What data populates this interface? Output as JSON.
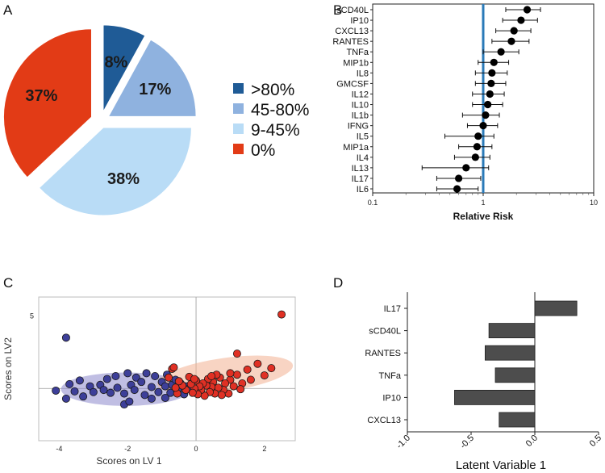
{
  "panels": {
    "a": "A",
    "b": "B",
    "c": "C",
    "d": "D"
  },
  "chart_data": [
    {
      "type": "pie",
      "panel": "A",
      "slices": [
        {
          "label": ">80%",
          "value": 8,
          "display": "8%",
          "color": "#1f5b96"
        },
        {
          "label": "45-80%",
          "value": 17,
          "display": "17%",
          "color": "#8fb2df"
        },
        {
          "label": "9-45%",
          "value": 38,
          "display": "38%",
          "color": "#b9dcf6"
        },
        {
          "label": "0%",
          "value": 37,
          "display": "37%",
          "color": "#e23b16"
        }
      ],
      "exploded": true,
      "legend_position": "right"
    },
    {
      "type": "scatter",
      "subtype": "forest-plot",
      "panel": "B",
      "xscale": "log",
      "xlim": [
        0.1,
        10
      ],
      "xticks": [
        "0.1",
        "1",
        "10"
      ],
      "xlabel": "Relative Risk",
      "reference_line": 1,
      "reference_color": "#2a7ab8",
      "markers": [
        {
          "label": "sCD40L",
          "estimate": 2.5,
          "low": 1.6,
          "high": 3.3
        },
        {
          "label": "IP10",
          "estimate": 2.2,
          "low": 1.5,
          "high": 3.1
        },
        {
          "label": "CXCL13",
          "estimate": 1.9,
          "low": 1.3,
          "high": 2.7
        },
        {
          "label": "RANTES",
          "estimate": 1.8,
          "low": 1.2,
          "high": 2.6
        },
        {
          "label": "TNFa",
          "estimate": 1.45,
          "low": 1.0,
          "high": 2.1
        },
        {
          "label": "MIP1b",
          "estimate": 1.25,
          "low": 0.9,
          "high": 1.7
        },
        {
          "label": "IL8",
          "estimate": 1.2,
          "low": 0.85,
          "high": 1.65
        },
        {
          "label": "GMCSF",
          "estimate": 1.18,
          "low": 0.85,
          "high": 1.6
        },
        {
          "label": "IL12",
          "estimate": 1.15,
          "low": 0.8,
          "high": 1.55
        },
        {
          "label": "IL10",
          "estimate": 1.1,
          "low": 0.8,
          "high": 1.5
        },
        {
          "label": "IL1b",
          "estimate": 1.05,
          "low": 0.65,
          "high": 1.4
        },
        {
          "label": "IFNG",
          "estimate": 1.0,
          "low": 0.72,
          "high": 1.35
        },
        {
          "label": "IL5",
          "estimate": 0.9,
          "low": 0.45,
          "high": 1.25
        },
        {
          "label": "MIP1a",
          "estimate": 0.88,
          "low": 0.6,
          "high": 1.2
        },
        {
          "label": "IL4",
          "estimate": 0.85,
          "low": 0.55,
          "high": 1.15
        },
        {
          "label": "IL13",
          "estimate": 0.7,
          "low": 0.28,
          "high": 1.12
        },
        {
          "label": "IL17",
          "estimate": 0.6,
          "low": 0.38,
          "high": 0.95
        },
        {
          "label": "IL6",
          "estimate": 0.58,
          "low": 0.38,
          "high": 0.9
        }
      ]
    },
    {
      "type": "scatter",
      "panel": "C",
      "xlabel": "Scores on LV 1",
      "ylabel": "Scores on LV2",
      "xlim": [
        -4.6,
        2.9
      ],
      "ylim": [
        -3.6,
        6.3
      ],
      "xticks": [
        "-4",
        "-2",
        "0",
        "2"
      ],
      "yticks": [
        "5"
      ],
      "series": [
        {
          "name": "blue group",
          "color": "#3d3f99",
          "ellipse_color": "#8c88cc",
          "ellipse": {
            "cx": -2.05,
            "cy": -0.05,
            "rx": 1.9,
            "ry": 1.15
          },
          "points": [
            [
              -3.8,
              3.5
            ],
            [
              -4.1,
              -0.15
            ],
            [
              -3.8,
              -0.7
            ],
            [
              -3.7,
              0.3
            ],
            [
              -3.4,
              0.55
            ],
            [
              -3.55,
              -0.2
            ],
            [
              -3.3,
              -0.55
            ],
            [
              -3.1,
              0.15
            ],
            [
              -3.0,
              -0.25
            ],
            [
              -2.8,
              0.25
            ],
            [
              -2.7,
              -0.1
            ],
            [
              -2.6,
              0.65
            ],
            [
              -2.5,
              -0.3
            ],
            [
              -2.35,
              0.85
            ],
            [
              -2.3,
              0.05
            ],
            [
              -2.1,
              -0.35
            ],
            [
              -2.0,
              1.05
            ],
            [
              -1.9,
              0.25
            ],
            [
              -1.8,
              -0.1
            ],
            [
              -1.75,
              0.75
            ],
            [
              -1.6,
              0.45
            ],
            [
              -1.5,
              -0.45
            ],
            [
              -1.45,
              1.05
            ],
            [
              -1.3,
              0.1
            ],
            [
              -1.2,
              0.85
            ],
            [
              -1.1,
              -0.25
            ],
            [
              -1.0,
              0.45
            ],
            [
              -0.9,
              0.15
            ],
            [
              -0.85,
              0.95
            ],
            [
              -0.75,
              -0.3
            ],
            [
              -0.7,
              0.25
            ],
            [
              -0.6,
              0.6
            ],
            [
              -0.55,
              -0.15
            ],
            [
              -0.5,
              0.05
            ],
            [
              -0.45,
              0.35
            ],
            [
              -0.35,
              -0.4
            ],
            [
              -0.3,
              0.15
            ],
            [
              -2.1,
              -1.1
            ],
            [
              -1.95,
              -0.9
            ],
            [
              -0.9,
              -0.65
            ],
            [
              -1.3,
              -0.7
            ],
            [
              -0.2,
              0.0
            ]
          ]
        },
        {
          "name": "red group",
          "color": "#e03024",
          "ellipse_color": "#f2b092",
          "ellipse": {
            "cx": 0.85,
            "cy": 0.95,
            "rx": 2.0,
            "ry": 1.15
          },
          "points": [
            [
              2.5,
              5.1
            ],
            [
              1.2,
              2.4
            ],
            [
              2.2,
              1.4
            ],
            [
              2.0,
              0.9
            ],
            [
              1.8,
              1.7
            ],
            [
              1.6,
              0.6
            ],
            [
              1.5,
              1.3
            ],
            [
              1.35,
              0.35
            ],
            [
              1.2,
              0.95
            ],
            [
              1.1,
              0.15
            ],
            [
              1.0,
              0.6
            ],
            [
              0.95,
              -0.35
            ],
            [
              0.85,
              0.35
            ],
            [
              0.8,
              -0.1
            ],
            [
              0.7,
              0.75
            ],
            [
              0.65,
              0.05
            ],
            [
              0.55,
              -0.35
            ],
            [
              0.5,
              0.45
            ],
            [
              0.45,
              0.1
            ],
            [
              0.4,
              -0.25
            ],
            [
              0.35,
              0.65
            ],
            [
              0.3,
              0.2
            ],
            [
              0.25,
              -0.5
            ],
            [
              0.2,
              0.35
            ],
            [
              0.15,
              -0.1
            ],
            [
              0.1,
              0.15
            ],
            [
              0.05,
              -0.4
            ],
            [
              0.0,
              0.55
            ],
            [
              -0.05,
              0.0
            ],
            [
              -0.1,
              -0.3
            ],
            [
              -0.15,
              0.3
            ],
            [
              -0.2,
              0.8
            ],
            [
              -0.3,
              -0.1
            ],
            [
              -0.4,
              0.2
            ],
            [
              -0.5,
              0.5
            ],
            [
              -0.55,
              -0.35
            ],
            [
              -0.6,
              0.05
            ],
            [
              -0.7,
              1.35
            ],
            [
              -0.8,
              0.75
            ],
            [
              -0.65,
              1.45
            ],
            [
              0.6,
              0.95
            ],
            [
              1.0,
              1.05
            ],
            [
              1.3,
              -0.05
            ],
            [
              0.75,
              -0.45
            ],
            [
              0.45,
              0.85
            ],
            [
              -0.05,
              0.65
            ]
          ]
        }
      ]
    },
    {
      "type": "bar",
      "panel": "D",
      "orientation": "horizontal",
      "categories": [
        "IL17",
        "sCD40L",
        "RANTES",
        "TNFa",
        "IP10",
        "CXCL13"
      ],
      "values": [
        0.33,
        -0.36,
        -0.39,
        -0.31,
        -0.63,
        -0.28
      ],
      "xlim": [
        -1.0,
        0.5
      ],
      "xticks": [
        "-1.0",
        "-0.5",
        "0.0",
        "0.5"
      ],
      "xlabel": "Latent Variable 1",
      "bar_color": "#4d4d4d"
    }
  ]
}
